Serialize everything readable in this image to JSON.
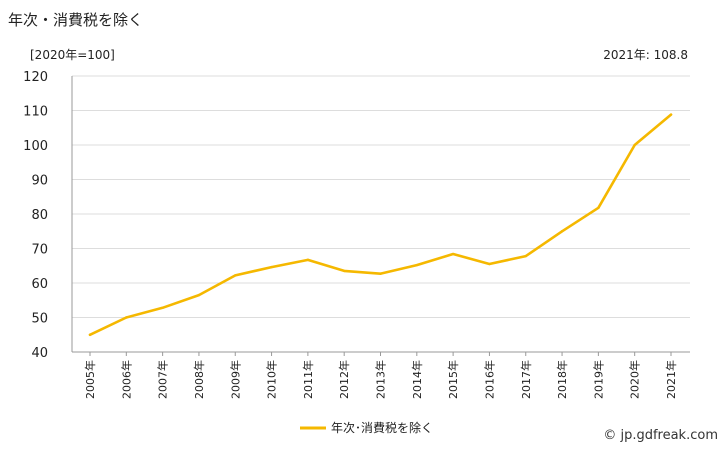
{
  "page": {
    "title": "年次・消費税を除く",
    "unit_label": "[2020年=100]",
    "latest_label": "2021年: 108.8",
    "credit": "© jp.gdfreak.com"
  },
  "chart_data": {
    "type": "line",
    "title": "年次・消費税を除く",
    "xlabel": "",
    "ylabel": "",
    "ylim": [
      40,
      120
    ],
    "yticks": [
      40,
      50,
      60,
      70,
      80,
      90,
      100,
      110,
      120
    ],
    "grid": true,
    "legend_position": "bottom",
    "categories": [
      "2005年",
      "2006年",
      "2007年",
      "2008年",
      "2009年",
      "2010年",
      "2011年",
      "2012年",
      "2013年",
      "2014年",
      "2015年",
      "2016年",
      "2017年",
      "2018年",
      "2019年",
      "2020年",
      "2021年"
    ],
    "series": [
      {
        "name": "年次･消費税を除く",
        "color": "#f5b800",
        "values": [
          45.0,
          50.0,
          52.8,
          56.5,
          62.2,
          64.6,
          66.7,
          63.5,
          62.7,
          65.2,
          68.4,
          65.5,
          67.8,
          75.0,
          81.8,
          100.0,
          108.8
        ]
      }
    ]
  }
}
